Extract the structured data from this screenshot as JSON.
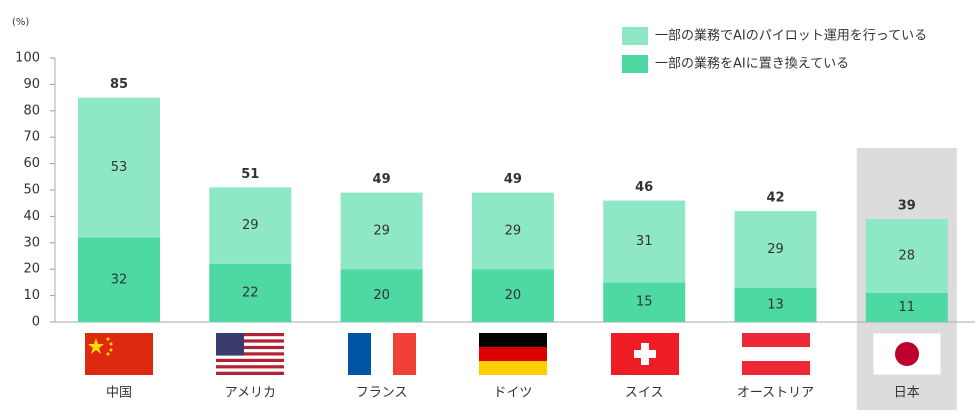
{
  "chart_data": {
    "type": "stacked_bar",
    "y_unit": "(%)",
    "categories": [
      "中国",
      "アメリカ",
      "フランス",
      "ドイツ",
      "スイス",
      "オーストリア",
      "日本"
    ],
    "series": [
      {
        "name": "一部の業務をAIに置き換えている",
        "color": "#4fd9a2",
        "values": [
          32,
          22,
          20,
          20,
          15,
          13,
          11
        ]
      },
      {
        "name": "一部の業務でAIのパイロット運用を行っている",
        "color": "#8fe8c5",
        "values": [
          53,
          29,
          29,
          29,
          31,
          29,
          28
        ]
      }
    ],
    "totals": [
      85,
      51,
      49,
      49,
      46,
      42,
      39
    ],
    "ylim": [
      0,
      100
    ],
    "yticks": [
      0,
      10,
      20,
      30,
      40,
      50,
      60,
      70,
      80,
      90,
      100
    ],
    "highlight_category": 6
  }
}
